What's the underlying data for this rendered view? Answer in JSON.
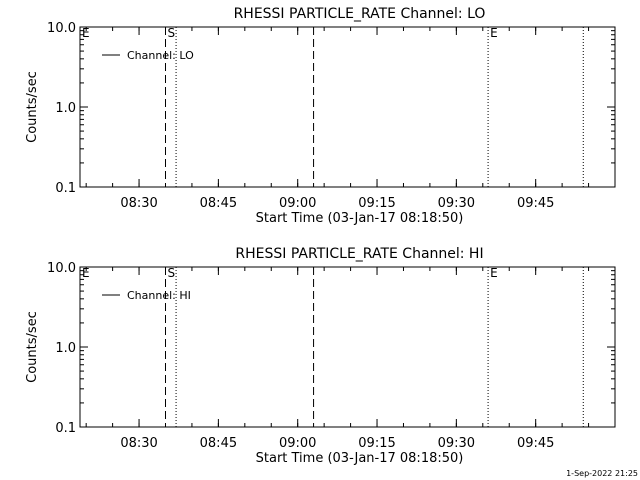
{
  "chart_data": [
    {
      "type": "line",
      "title": "RHESSI PARTICLE_RATE Channel: LO",
      "xlabel": "Start Time (03-Jan-17 08:18:50)",
      "ylabel": "Counts/sec",
      "y_scale": "log",
      "ylim": [
        0.1,
        10.0
      ],
      "xlim": [
        "08:18:50",
        "10:00:00"
      ],
      "x_ticks": [
        "08:30",
        "08:45",
        "09:00",
        "09:15",
        "09:30",
        "09:45"
      ],
      "y_ticks": [
        "0.1",
        "1.0",
        "10.0"
      ],
      "grid": false,
      "legend": {
        "placement": "top-left",
        "entries": [
          {
            "name": "Channel: LO"
          }
        ]
      },
      "series": [
        {
          "name": "Channel: LO",
          "values": []
        }
      ],
      "markers": [
        {
          "time": "08:18:50",
          "style": "dotted",
          "label": "E"
        },
        {
          "time": "08:35:00",
          "style": "dashed",
          "label": "S"
        },
        {
          "time": "08:37:00",
          "style": "dotted",
          "label": ""
        },
        {
          "time": "09:03:00",
          "style": "dashed",
          "label": ""
        },
        {
          "time": "09:36:00",
          "style": "dotted",
          "label": "E"
        },
        {
          "time": "09:54:00",
          "style": "dotted",
          "label": ""
        }
      ]
    },
    {
      "type": "line",
      "title": "RHESSI PARTICLE_RATE Channel: HI",
      "xlabel": "Start Time (03-Jan-17 08:18:50)",
      "ylabel": "Counts/sec",
      "y_scale": "log",
      "ylim": [
        0.1,
        10.0
      ],
      "xlim": [
        "08:18:50",
        "10:00:00"
      ],
      "x_ticks": [
        "08:30",
        "08:45",
        "09:00",
        "09:15",
        "09:30",
        "09:45"
      ],
      "y_ticks": [
        "0.1",
        "1.0",
        "10.0"
      ],
      "grid": false,
      "legend": {
        "placement": "top-left",
        "entries": [
          {
            "name": "Channel: HI"
          }
        ]
      },
      "series": [
        {
          "name": "Channel: HI",
          "values": []
        }
      ],
      "markers": [
        {
          "time": "08:18:50",
          "style": "dotted",
          "label": "E"
        },
        {
          "time": "08:35:00",
          "style": "dashed",
          "label": "S"
        },
        {
          "time": "08:37:00",
          "style": "dotted",
          "label": ""
        },
        {
          "time": "09:03:00",
          "style": "dashed",
          "label": ""
        },
        {
          "time": "09:36:00",
          "style": "dotted",
          "label": "E"
        },
        {
          "time": "09:54:00",
          "style": "dotted",
          "label": ""
        }
      ]
    }
  ],
  "footer": {
    "timestamp": "1-Sep-2022 21:25"
  }
}
